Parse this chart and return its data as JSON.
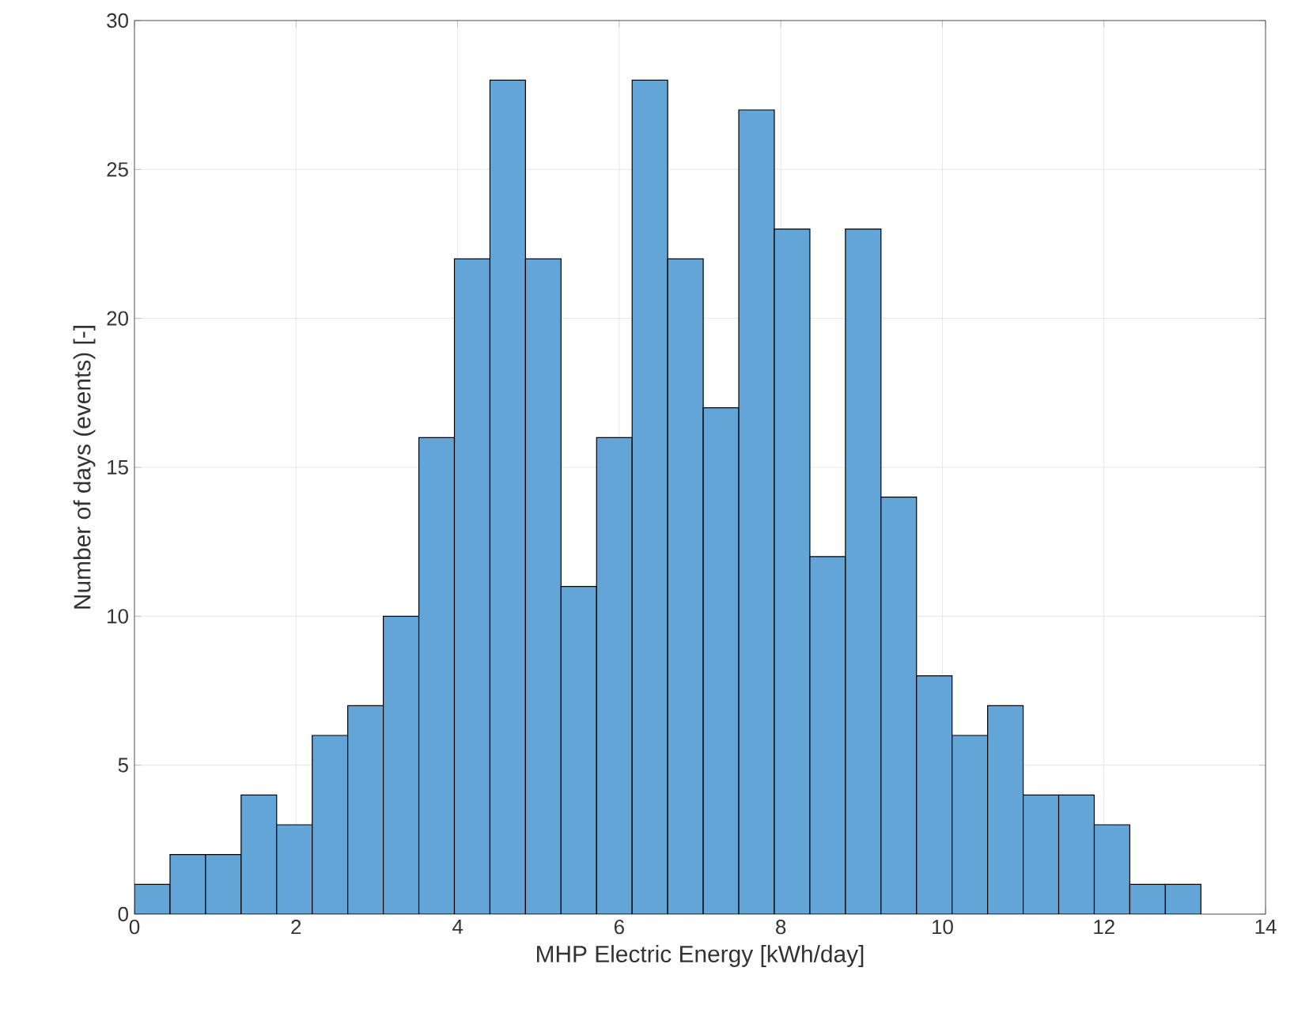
{
  "chart_data": {
    "type": "histogram",
    "xlabel": "MHP Electric Energy [kWh/day]",
    "ylabel": "Number of days (events) [-]",
    "bins": [
      0,
      0.44,
      0.88,
      1.32,
      1.76,
      2.2,
      2.64,
      3.08,
      3.52,
      3.96,
      4.4,
      4.84,
      5.28,
      5.72,
      6.16,
      6.6,
      7.04,
      7.48,
      7.92,
      8.36,
      8.8,
      9.24,
      9.68,
      10.12,
      10.56,
      11.0,
      11.44,
      11.88,
      12.32,
      12.76,
      13.2
    ],
    "values": [
      1,
      2,
      2,
      4,
      3,
      6,
      7,
      10,
      16,
      22,
      28,
      22,
      11,
      16,
      28,
      22,
      17,
      27,
      23,
      12,
      23,
      14,
      8,
      6,
      7,
      4,
      4,
      3,
      1,
      1
    ],
    "color": "#63a5d6",
    "xlim": [
      0,
      14
    ],
    "ylim": [
      0,
      30
    ],
    "xticks": [
      0,
      2,
      4,
      6,
      8,
      10,
      12,
      14
    ],
    "yticks": [
      0,
      5,
      10,
      15,
      20,
      25,
      30
    ],
    "grid": true
  }
}
